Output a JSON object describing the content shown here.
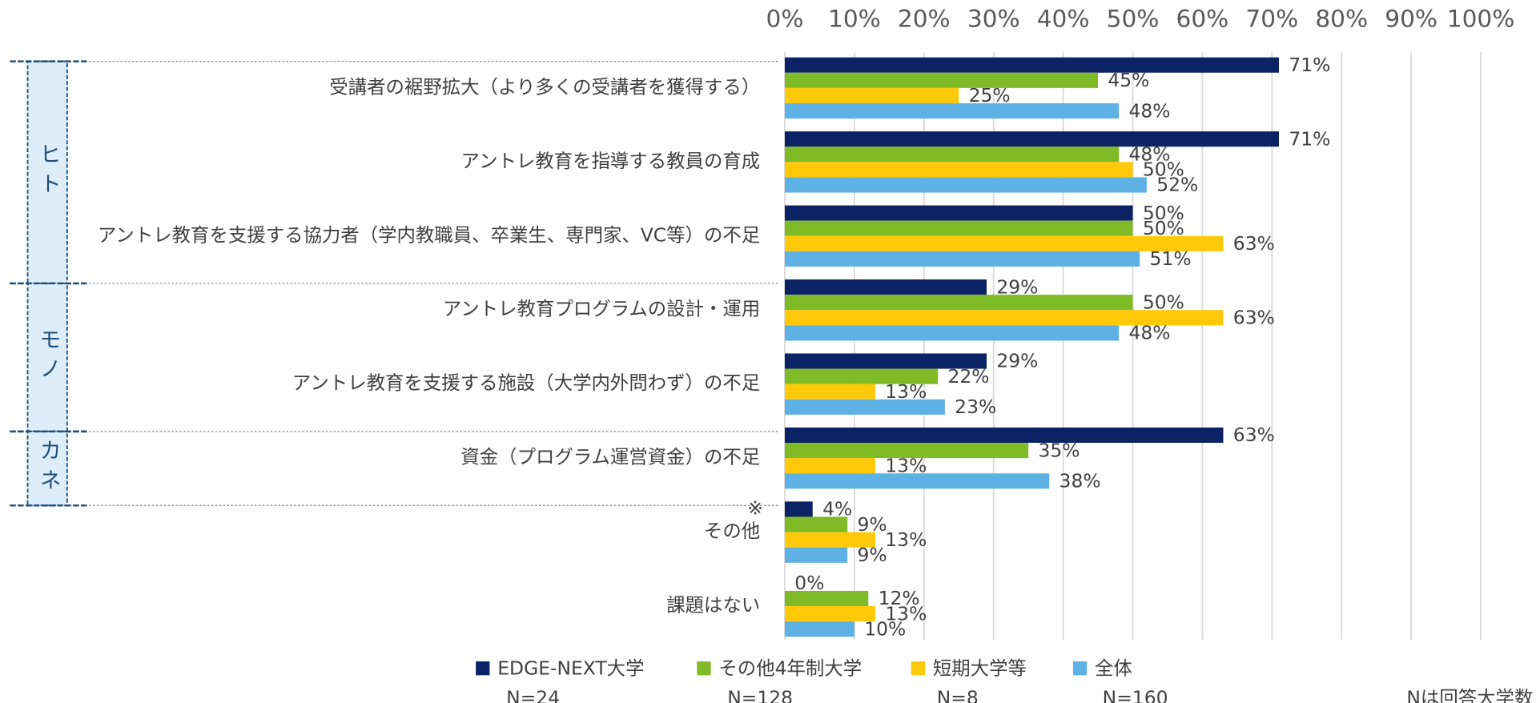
{
  "chart_data": {
    "type": "hbar",
    "categories": [
      "受講者の裾野拡大（より多くの受講者を獲得する）",
      "アントレ教育を指導する教員の育成",
      "アントレ教育を支援する協力者（学内教職員、卒業生、専門家、VC等）の不足",
      "アントレ教育プログラムの設計・運用",
      "アントレ教育を支援する施設（大学内外問わず）の不足",
      "資金（プログラム運営資金）の不足",
      "その他",
      "課題はない"
    ],
    "series": [
      {
        "name": "EDGE-NEXT大学",
        "n": "N=24",
        "color": "#0b2265",
        "values": [
          71,
          71,
          50,
          29,
          29,
          63,
          4,
          0
        ],
        "value_labels": [
          "71%",
          "71%",
          "50%",
          "29%",
          "29%",
          "63%",
          "4%",
          "0%"
        ]
      },
      {
        "name": "その他4年制大学",
        "n": "N=128",
        "color": "#7fba27",
        "values": [
          45,
          48,
          50,
          50,
          22,
          35,
          9,
          12
        ],
        "value_labels": [
          "45%",
          "48%",
          "50%",
          "50%",
          "22%",
          "35%",
          "9%",
          "12%"
        ]
      },
      {
        "name": "短期大学等",
        "n": "N=8",
        "color": "#ffc90a",
        "values": [
          25,
          50,
          63,
          63,
          13,
          13,
          13,
          13
        ],
        "value_labels": [
          "25%",
          "50%",
          "63%",
          "63%",
          "13%",
          "13%",
          "13%",
          "13%"
        ]
      },
      {
        "name": "全体",
        "n": "N=160",
        "color": "#5eb1e5",
        "values": [
          48,
          52,
          51,
          48,
          23,
          38,
          9,
          10
        ],
        "value_labels": [
          "48%",
          "52%",
          "51%",
          "48%",
          "23%",
          "38%",
          "9%",
          "10%"
        ]
      }
    ],
    "xlim": [
      0,
      100
    ],
    "xticks": [
      {
        "value": 0,
        "label": "0%"
      },
      {
        "value": 10,
        "label": "10%"
      },
      {
        "value": 20,
        "label": "20%"
      },
      {
        "value": 30,
        "label": "30%"
      },
      {
        "value": 40,
        "label": "40%"
      },
      {
        "value": 50,
        "label": "50%"
      },
      {
        "value": 60,
        "label": "60%"
      },
      {
        "value": 70,
        "label": "70%"
      },
      {
        "value": 80,
        "label": "80%"
      },
      {
        "value": 90,
        "label": "90%"
      },
      {
        "value": 100,
        "label": "100%"
      }
    ],
    "grid": true,
    "groups": [
      {
        "label": "ヒト",
        "first": 0,
        "last": 2
      },
      {
        "label": "モノ",
        "first": 3,
        "last": 4
      },
      {
        "label": "カネ",
        "first": 5,
        "last": 5
      }
    ],
    "annotations": [
      {
        "text": "※",
        "category": 6
      }
    ],
    "note": "Nは回答大学数"
  }
}
